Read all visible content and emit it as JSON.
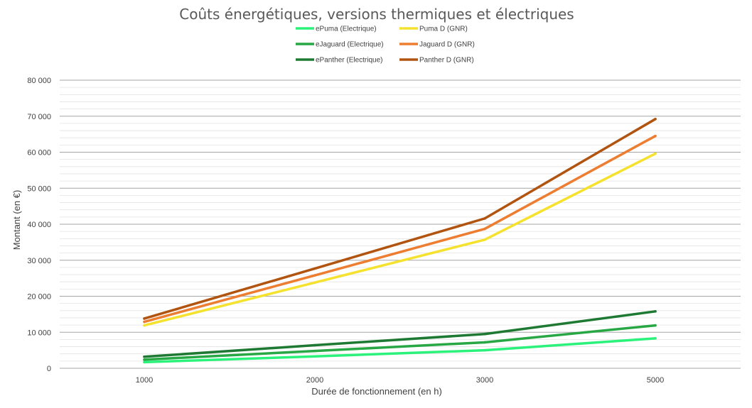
{
  "chart_data": {
    "type": "line",
    "title": "Coûts énergétiques, versions thermiques et électriques",
    "xlabel": "Durée de fonctionnement (en h)",
    "ylabel": "Montant (en €)",
    "categories": [
      "1000",
      "2000",
      "3000",
      "5000"
    ],
    "x_tick_labels": [
      "1000",
      "2000",
      "3000",
      "5000"
    ],
    "y_tick_labels": [
      "0",
      "10 000",
      "20 000",
      "30 000",
      "40 000",
      "50 000",
      "60 000",
      "70 000",
      "80 000"
    ],
    "ylim": [
      0,
      80000
    ],
    "grid": "horizontal major and minor gridlines",
    "legend_position": "top",
    "series": [
      {
        "name": "ePuma (Electrique)",
        "color": "#2BF27A",
        "values": [
          1700,
          3300,
          5000,
          8300
        ]
      },
      {
        "name": "eJaguard (Electrique)",
        "color": "#28A745",
        "values": [
          2400,
          4800,
          7200,
          11900
        ]
      },
      {
        "name": "ePanther (Electrique)",
        "color": "#1E7A33",
        "values": [
          3200,
          6400,
          9500,
          15800
        ]
      },
      {
        "name": "Puma D (GNR)",
        "color": "#F5E22E",
        "values": [
          11900,
          23800,
          35700,
          59600
        ]
      },
      {
        "name": "Jaguard D (GNR)",
        "color": "#ED7D31",
        "values": [
          12900,
          25800,
          38700,
          64500
        ]
      },
      {
        "name": "Panther D (GNR)",
        "color": "#B1540F",
        "values": [
          13800,
          27700,
          41600,
          69200
        ]
      }
    ]
  }
}
